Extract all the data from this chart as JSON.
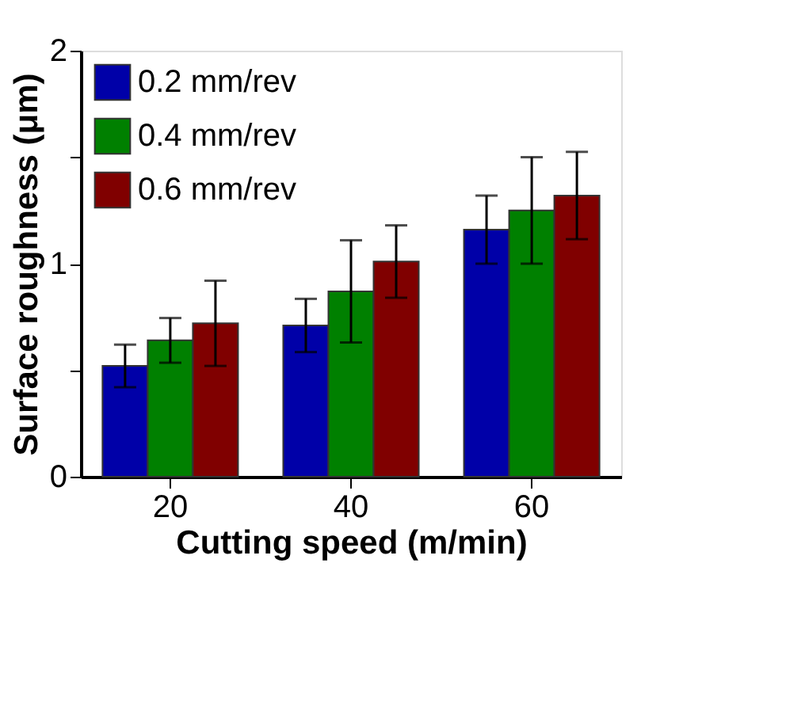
{
  "chart_data": {
    "type": "bar",
    "xlabel": "Cutting speed (m/min)",
    "ylabel": "Surface roughness (μm)",
    "categories": [
      "20",
      "40",
      "60"
    ],
    "series": [
      {
        "name": "0.2 mm/rev",
        "color": "#0000a8",
        "values": [
          0.52,
          0.71,
          1.16
        ],
        "errors": [
          0.1,
          0.125,
          0.16
        ]
      },
      {
        "name": "0.4 mm/rev",
        "color": "#008000",
        "values": [
          0.64,
          0.87,
          1.25
        ],
        "errors": [
          0.105,
          0.24,
          0.25
        ]
      },
      {
        "name": "0.6 mm/rev",
        "color": "#800000",
        "values": [
          0.72,
          1.01,
          1.32
        ],
        "errors": [
          0.2,
          0.17,
          0.205
        ]
      }
    ],
    "ylim": [
      0,
      2
    ],
    "yticks": [
      0,
      {
        "value": 0.5,
        "label": null
      },
      1,
      {
        "value": 1.5,
        "label": null
      },
      2
    ],
    "legend": "top left",
    "grid": false
  }
}
